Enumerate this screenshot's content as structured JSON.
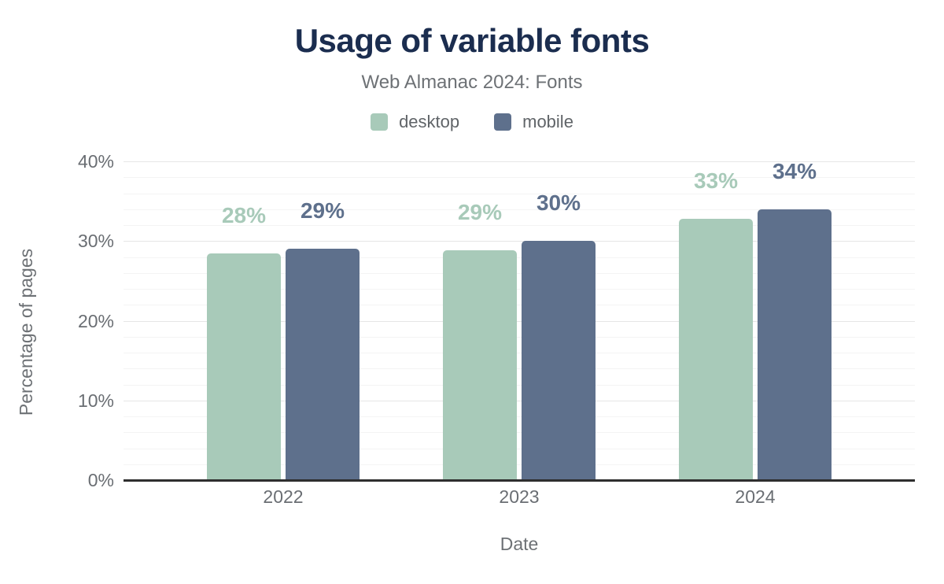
{
  "header": {
    "title": "Usage of variable fonts",
    "subtitle": "Web Almanac 2024: Fonts"
  },
  "colors": {
    "title_text": "#1b2d4f",
    "gray_text": "#6a6e73",
    "axis_line": "#2e2e2e",
    "grid_major": "#e6e6e6",
    "grid_minor": "#f4f4f4",
    "desktop": "#a8cab9",
    "mobile": "#5e708c"
  },
  "chart_data": {
    "type": "bar",
    "title": "Usage of variable fonts",
    "subtitle": "Web Almanac 2024: Fonts",
    "xlabel": "Date",
    "ylabel": "Percentage of pages",
    "categories": [
      "2022",
      "2023",
      "2024"
    ],
    "series": [
      {
        "name": "desktop",
        "color": "#a8cab9",
        "values": [
          28.4,
          28.8,
          32.8
        ],
        "data_labels": [
          "28%",
          "29%",
          "33%"
        ]
      },
      {
        "name": "mobile",
        "color": "#5e708c",
        "values": [
          29,
          30,
          34
        ],
        "data_labels": [
          "29%",
          "30%",
          "34%"
        ]
      }
    ],
    "ylim": [
      0,
      40
    ],
    "yticks": [
      {
        "value": 0,
        "label": "0%"
      },
      {
        "value": 10,
        "label": "10%"
      },
      {
        "value": 20,
        "label": "20%"
      },
      {
        "value": 30,
        "label": "30%"
      },
      {
        "value": 40,
        "label": "40%"
      }
    ],
    "grid": {
      "minor_step": 2,
      "major_step": 10,
      "grid_on": true
    },
    "legend_position": "top"
  }
}
